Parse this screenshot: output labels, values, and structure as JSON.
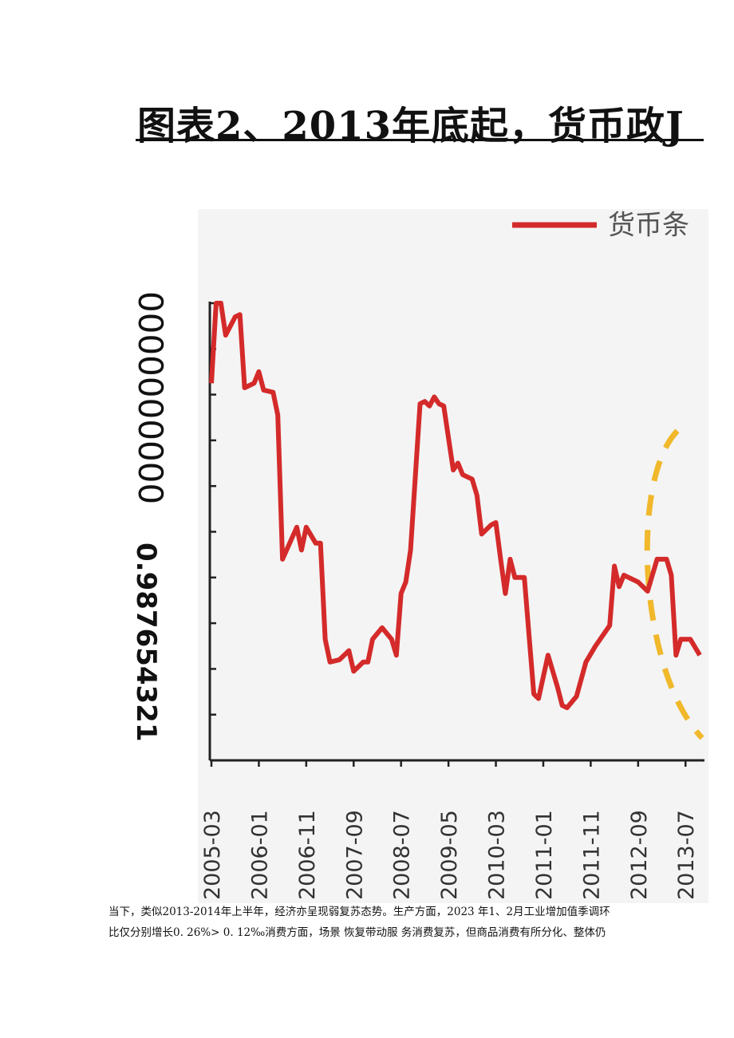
{
  "header": {
    "title": "图表2、2013年底起，货币政J"
  },
  "chart_data": {
    "type": "line",
    "y_axis_text": [
      "0000000000",
      "0.987654321"
    ],
    "x": [
      "2005-03",
      "2005-04",
      "2005-05",
      "2005-06",
      "2005-08",
      "2005-09",
      "2005-10",
      "2005-12",
      "2006-01",
      "2006-02",
      "2006-04",
      "2006-05",
      "2006-06",
      "2006-09",
      "2006-10",
      "2006-11",
      "2007-01",
      "2007-02",
      "2007-03",
      "2007-04",
      "2007-06",
      "2007-08",
      "2007-09",
      "2007-11",
      "2007-12",
      "2008-01",
      "2008-03",
      "2008-05",
      "2008-06",
      "2008-07",
      "2008-08",
      "2008-09",
      "2008-11",
      "2008-12",
      "2009-01",
      "2009-02",
      "2009-03",
      "2009-04",
      "2009-06",
      "2009-07",
      "2009-08",
      "2009-10",
      "2009-11",
      "2009-12",
      "2010-02",
      "2010-03",
      "2010-04",
      "2010-05",
      "2010-06",
      "2010-07",
      "2010-09",
      "2010-11",
      "2010-12",
      "2011-02",
      "2011-04",
      "2011-05",
      "2011-06",
      "2011-08",
      "2011-10",
      "2011-12",
      "2012-03",
      "2012-04",
      "2012-05",
      "2012-06",
      "2012-09",
      "2012-11",
      "2013-01",
      "2013-03",
      "2013-04",
      "2013-05",
      "2013-06",
      "2013-08",
      "2013-10"
    ],
    "series": [
      {
        "name": "货币条",
        "color": "#d42a2a",
        "values": [
          8.25,
          10.0,
          10.0,
          9.3,
          9.7,
          9.75,
          8.15,
          8.25,
          8.5,
          8.1,
          8.05,
          7.55,
          4.4,
          5.1,
          4.6,
          5.1,
          4.75,
          4.75,
          2.65,
          2.15,
          2.2,
          2.4,
          1.95,
          2.15,
          2.15,
          2.65,
          2.9,
          2.65,
          2.3,
          3.65,
          3.9,
          4.6,
          7.8,
          7.85,
          7.75,
          7.95,
          7.8,
          7.75,
          6.35,
          6.5,
          6.25,
          6.15,
          5.8,
          4.95,
          5.15,
          5.2,
          4.4,
          3.65,
          4.4,
          4.0,
          4.0,
          1.45,
          1.35,
          2.3,
          1.6,
          1.2,
          1.15,
          1.4,
          2.15,
          2.5,
          2.95,
          4.25,
          3.8,
          4.05,
          3.9,
          3.7,
          4.4,
          4.4,
          4.05,
          2.3,
          2.65,
          2.65,
          2.3
        ]
      }
    ],
    "xlim": [
      "2005-03",
      "2013-11"
    ],
    "xticks": [
      "2005-03",
      "2006-01",
      "2006-11",
      "2007-09",
      "2008-07",
      "2009-05",
      "2010-03",
      "2011-01",
      "2011-11",
      "2012-09",
      "2013-07"
    ],
    "ylim": [
      0,
      10
    ],
    "yticks": [
      0,
      1,
      2,
      3,
      4,
      5,
      6,
      7,
      8,
      9,
      10
    ]
  },
  "body": [
    "当下，类似2013-2014年上半年，经济亦呈现弱复苏态势。生产方面，2023 年1、2月工业增加值季调环",
    "比仅分别增长0. 26%> 0. 12‰消费方面，场景 恢复带动服 务消费复苏，但商品消费有所分化、整体仍"
  ]
}
